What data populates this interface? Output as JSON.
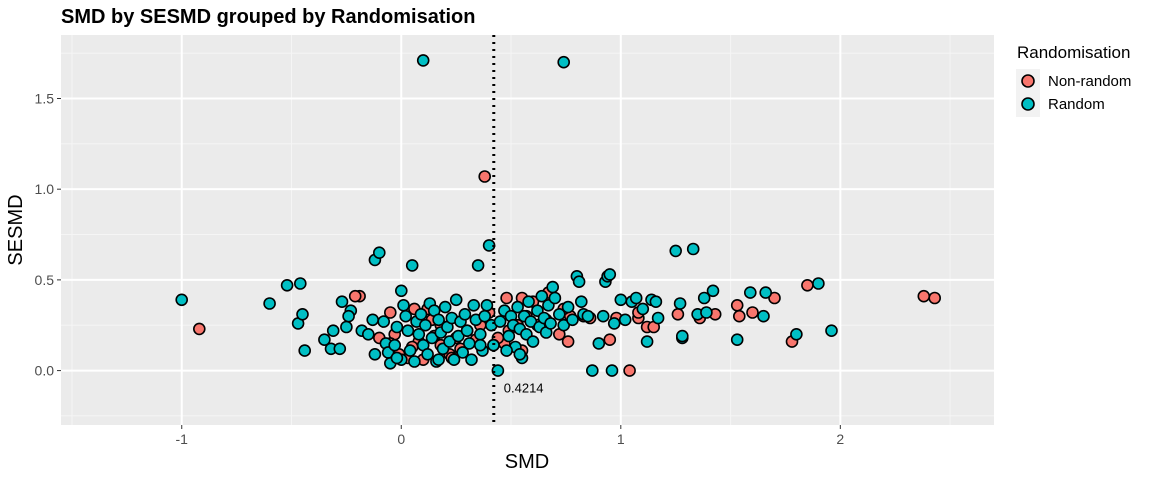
{
  "chart_data": {
    "type": "scatter",
    "title": "SMD by SESMD grouped by Randomisation",
    "xlabel": "SMD",
    "ylabel": "SESMD",
    "xlim": [
      -1.55,
      2.7
    ],
    "ylim": [
      -0.3,
      1.85
    ],
    "x_ticks": [
      -1,
      0,
      1,
      2
    ],
    "y_ticks": [
      0.0,
      0.5,
      1.0,
      1.5
    ],
    "x_tick_labels": [
      "-1",
      "0",
      "1",
      "2"
    ],
    "y_tick_labels": [
      "0.0",
      "0.5",
      "1.0",
      "1.5"
    ],
    "grid": true,
    "legend": {
      "title": "Randomisation",
      "position": "right",
      "entries": [
        {
          "label": "Non-random",
          "color": "#F8766D"
        },
        {
          "label": "Random",
          "color": "#00BFC4"
        }
      ]
    },
    "reference_line": {
      "x": 0.4214,
      "style": "dotted",
      "label": "0.4214"
    },
    "series": [
      {
        "name": "Non-random",
        "color": "#F8766D",
        "points": [
          [
            -0.92,
            0.23
          ],
          [
            0.38,
            1.07
          ],
          [
            2.38,
            0.41
          ],
          [
            2.43,
            0.4
          ],
          [
            1.85,
            0.47
          ],
          [
            1.7,
            0.4
          ],
          [
            1.6,
            0.32
          ],
          [
            1.53,
            0.36
          ],
          [
            1.54,
            0.3
          ],
          [
            1.43,
            0.31
          ],
          [
            1.36,
            0.29
          ],
          [
            1.78,
            0.16
          ],
          [
            1.04,
            0.0
          ],
          [
            1.08,
            0.29
          ],
          [
            1.12,
            0.24
          ],
          [
            1.15,
            0.24
          ],
          [
            1.26,
            0.31
          ],
          [
            0.95,
            0.17
          ],
          [
            0.83,
            0.3
          ],
          [
            0.77,
            0.3
          ],
          [
            0.74,
            0.34
          ],
          [
            0.72,
            0.2
          ],
          [
            0.67,
            0.43
          ],
          [
            0.66,
            0.28
          ],
          [
            0.62,
            0.25
          ],
          [
            0.6,
            0.38
          ],
          [
            0.57,
            0.3
          ],
          [
            0.55,
            0.4
          ],
          [
            0.53,
            0.25
          ],
          [
            0.49,
            0.22
          ],
          [
            0.47,
            0.15
          ],
          [
            0.48,
            0.4
          ],
          [
            0.44,
            0.18
          ],
          [
            0.4,
            0.32
          ],
          [
            0.36,
            0.25
          ],
          [
            0.34,
            0.17
          ],
          [
            0.3,
            0.22
          ],
          [
            0.27,
            0.12
          ],
          [
            0.25,
            0.18
          ],
          [
            0.22,
            0.09
          ],
          [
            0.2,
            0.24
          ],
          [
            0.18,
            0.14
          ],
          [
            0.15,
            0.19
          ],
          [
            0.14,
            0.28
          ],
          [
            0.1,
            0.06
          ],
          [
            0.08,
            0.16
          ],
          [
            0.05,
            0.13
          ],
          [
            0.03,
            0.07
          ],
          [
            -0.01,
            0.09
          ],
          [
            -0.03,
            0.2
          ],
          [
            -0.05,
            0.15
          ],
          [
            -0.19,
            0.41
          ],
          [
            -0.21,
            0.41
          ],
          [
            -0.05,
            0.32
          ],
          [
            0.06,
            0.34
          ],
          [
            0.12,
            0.34
          ],
          [
            0.18,
            0.25
          ],
          [
            0.23,
            0.07
          ],
          [
            0.42,
            0.14
          ],
          [
            0.76,
            0.16
          ],
          [
            0.55,
            0.11
          ],
          [
            0.86,
            0.29
          ],
          [
            0.98,
            0.29
          ],
          [
            1.08,
            0.32
          ],
          [
            -0.1,
            0.18
          ]
        ]
      },
      {
        "name": "Random",
        "color": "#00BFC4",
        "points": [
          [
            0.1,
            1.71
          ],
          [
            0.74,
            1.7
          ],
          [
            -1.0,
            0.39
          ],
          [
            -0.6,
            0.37
          ],
          [
            -0.52,
            0.47
          ],
          [
            -0.46,
            0.48
          ],
          [
            -0.47,
            0.26
          ],
          [
            -0.45,
            0.31
          ],
          [
            -0.44,
            0.11
          ],
          [
            -0.35,
            0.17
          ],
          [
            -0.32,
            0.12
          ],
          [
            -0.31,
            0.22
          ],
          [
            -0.27,
            0.38
          ],
          [
            -0.25,
            0.24
          ],
          [
            -0.23,
            0.33
          ],
          [
            -0.24,
            0.3
          ],
          [
            -0.18,
            0.22
          ],
          [
            -0.15,
            0.2
          ],
          [
            -0.13,
            0.28
          ],
          [
            -0.12,
            0.09
          ],
          [
            -0.12,
            0.61
          ],
          [
            -0.1,
            0.65
          ],
          [
            -0.08,
            0.27
          ],
          [
            -0.07,
            0.15
          ],
          [
            -0.06,
            0.1
          ],
          [
            -0.05,
            0.04
          ],
          [
            -0.03,
            0.14
          ],
          [
            -0.02,
            0.24
          ],
          [
            0.0,
            0.44
          ],
          [
            0.01,
            0.36
          ],
          [
            0.02,
            0.3
          ],
          [
            0.03,
            0.22
          ],
          [
            0.04,
            0.11
          ],
          [
            0.05,
            0.58
          ],
          [
            0.06,
            0.05
          ],
          [
            0.07,
            0.27
          ],
          [
            0.08,
            0.2
          ],
          [
            0.09,
            0.31
          ],
          [
            0.1,
            0.14
          ],
          [
            0.11,
            0.25
          ],
          [
            0.12,
            0.09
          ],
          [
            0.13,
            0.37
          ],
          [
            0.14,
            0.18
          ],
          [
            0.15,
            0.33
          ],
          [
            0.16,
            0.05
          ],
          [
            0.17,
            0.28
          ],
          [
            0.18,
            0.21
          ],
          [
            0.19,
            0.12
          ],
          [
            0.2,
            0.35
          ],
          [
            0.21,
            0.24
          ],
          [
            0.22,
            0.16
          ],
          [
            0.23,
            0.29
          ],
          [
            0.24,
            0.06
          ],
          [
            0.25,
            0.39
          ],
          [
            0.26,
            0.19
          ],
          [
            0.27,
            0.27
          ],
          [
            0.28,
            0.1
          ],
          [
            0.29,
            0.31
          ],
          [
            0.3,
            0.22
          ],
          [
            0.31,
            0.15
          ],
          [
            0.33,
            0.36
          ],
          [
            0.34,
            0.28
          ],
          [
            0.35,
            0.58
          ],
          [
            0.36,
            0.2
          ],
          [
            0.37,
            0.11
          ],
          [
            0.38,
            0.3
          ],
          [
            0.39,
            0.36
          ],
          [
            0.4,
            0.69
          ],
          [
            0.41,
            0.25
          ],
          [
            0.42,
            0.14
          ],
          [
            0.44,
            0.0
          ],
          [
            0.45,
            0.27
          ],
          [
            0.47,
            0.33
          ],
          [
            0.49,
            0.19
          ],
          [
            0.5,
            0.3
          ],
          [
            0.51,
            0.25
          ],
          [
            0.52,
            0.13
          ],
          [
            0.53,
            0.35
          ],
          [
            0.54,
            0.23
          ],
          [
            0.55,
            0.07
          ],
          [
            0.56,
            0.3
          ],
          [
            0.57,
            0.2
          ],
          [
            0.58,
            0.38
          ],
          [
            0.59,
            0.27
          ],
          [
            0.6,
            0.16
          ],
          [
            0.62,
            0.33
          ],
          [
            0.63,
            0.24
          ],
          [
            0.64,
            0.41
          ],
          [
            0.65,
            0.29
          ],
          [
            0.66,
            0.21
          ],
          [
            0.67,
            0.36
          ],
          [
            0.68,
            0.26
          ],
          [
            0.69,
            0.46
          ],
          [
            0.7,
            0.4
          ],
          [
            0.72,
            0.31
          ],
          [
            0.74,
            0.25
          ],
          [
            0.76,
            0.35
          ],
          [
            0.78,
            0.28
          ],
          [
            0.8,
            0.52
          ],
          [
            0.81,
            0.49
          ],
          [
            0.82,
            0.38
          ],
          [
            0.83,
            0.31
          ],
          [
            0.85,
            0.3
          ],
          [
            0.87,
            0.0
          ],
          [
            0.9,
            0.15
          ],
          [
            0.92,
            0.3
          ],
          [
            0.93,
            0.49
          ],
          [
            0.94,
            0.52
          ],
          [
            0.95,
            0.53
          ],
          [
            0.96,
            0.0
          ],
          [
            0.97,
            0.26
          ],
          [
            1.0,
            0.39
          ],
          [
            1.02,
            0.28
          ],
          [
            1.05,
            0.38
          ],
          [
            1.07,
            0.4
          ],
          [
            1.1,
            0.34
          ],
          [
            1.12,
            0.16
          ],
          [
            1.14,
            0.39
          ],
          [
            1.16,
            0.38
          ],
          [
            1.17,
            0.29
          ],
          [
            1.25,
            0.66
          ],
          [
            1.27,
            0.37
          ],
          [
            1.28,
            0.18
          ],
          [
            1.33,
            0.67
          ],
          [
            1.35,
            0.31
          ],
          [
            1.38,
            0.4
          ],
          [
            1.39,
            0.32
          ],
          [
            1.42,
            0.44
          ],
          [
            1.53,
            0.17
          ],
          [
            1.59,
            0.43
          ],
          [
            1.65,
            0.3
          ],
          [
            1.66,
            0.43
          ],
          [
            1.8,
            0.2
          ],
          [
            1.9,
            0.48
          ],
          [
            1.96,
            0.22
          ],
          [
            1.28,
            0.19
          ],
          [
            -0.28,
            0.12
          ],
          [
            0.17,
            0.06
          ],
          [
            0.32,
            0.06
          ],
          [
            0.48,
            0.11
          ],
          [
            0.54,
            0.09
          ],
          [
            0.0,
            0.06
          ],
          [
            0.36,
            0.14
          ],
          [
            -0.02,
            0.07
          ]
        ]
      }
    ]
  }
}
